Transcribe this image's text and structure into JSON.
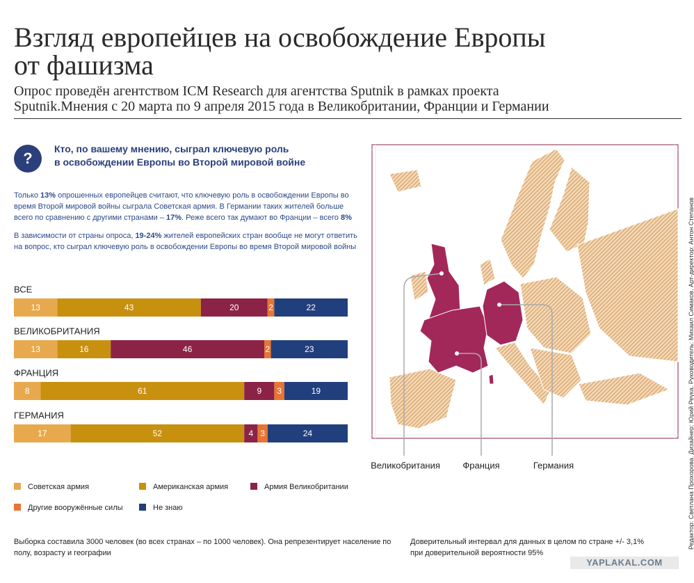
{
  "header": {
    "title": [
      "Взгляд европейцев на освобождение Европы",
      "от фашизма"
    ],
    "subtitle": [
      "Опрос проведён агентством ICM Research для агентства Sputnik в рамках проекта",
      "Sputnik.Мнения с 20 марта по 9 апреля 2015 года в Великобритании, Франции и Германии"
    ]
  },
  "question": {
    "icon": "?",
    "lines": [
      "Кто, по вашему мнению, сыграл ключевую роль",
      "в освобождении Европы во Второй мировой войне"
    ]
  },
  "intro": [
    [
      "Только ",
      "13%",
      " опрошенных европейцев считают, что ключевую роль в освобождении Европы во время Второй мировой войны сыграла Советская армия. В Германии таких жителей больше всего по сравнению с другими странами – ",
      "17%",
      ". Реже всего так думают во Франции – всего ",
      "8%"
    ],
    [
      "В зависимости от страны опроса, ",
      "19-24%",
      " жителей европейских стран вообще не могут ответить на вопрос, кто сыграл ключевую роль в освобождении Европы во время Второй мировой войны"
    ]
  ],
  "chart_data": {
    "type": "bar",
    "orientation": "horizontal",
    "stacked": true,
    "categories": [
      "ВСЕ",
      "ВЕЛИКОБРИТАНИЯ",
      "ФРАНЦИЯ",
      "ГЕРМАНИЯ"
    ],
    "series": [
      {
        "name": "Советская армия",
        "color": "#e8a94e",
        "values": [
          13,
          13,
          8,
          17
        ]
      },
      {
        "name": "Американская армия",
        "color": "#c8900f",
        "values": [
          43,
          16,
          61,
          52
        ]
      },
      {
        "name": "Армия Великобритании",
        "color": "#8b2346",
        "values": [
          20,
          46,
          9,
          4
        ]
      },
      {
        "name": "Другие вооружённые силы",
        "color": "#e87533",
        "values": [
          2,
          2,
          3,
          3
        ]
      },
      {
        "name": "Не знаю",
        "color": "#223f7d",
        "values": [
          22,
          23,
          19,
          24
        ]
      }
    ]
  },
  "map": {
    "labels": [
      "Великобритания",
      "Франция",
      "Германия"
    ]
  },
  "footnotes": [
    "Выборка составила 3000 человек (во всех странах – по 1000 человек). Она репрезентирует население по полу, возрасту и географии",
    "Доверительный интервал для данных в целом по стране +/- 3,1% при доверительной вероятности 95%"
  ],
  "credits": "Редактор: Светлана Прохорова. Дизайнер: Юрий Реука. Руководитель: Михаил Симаков. Арт-директор: Антон Степанов",
  "watermark": "YAPLAKAL.COM"
}
